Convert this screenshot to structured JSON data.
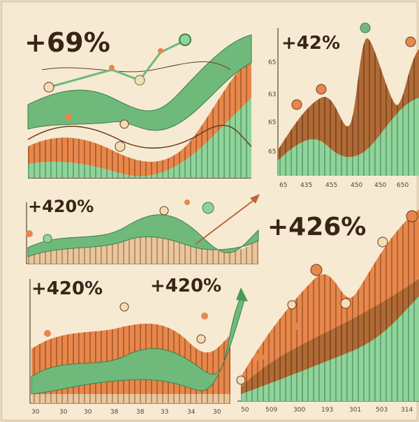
{
  "panels": [
    {
      "title": "+69%"
    },
    {
      "title": "+42%",
      "y_labels": [
        "65",
        "63",
        "65",
        "65"
      ],
      "x_labels": [
        "65",
        "435",
        "455",
        "450",
        "450",
        "650"
      ]
    },
    {
      "title": "+420%"
    },
    {
      "title": "+426%",
      "x_labels": [
        "50",
        "509",
        "300",
        "193",
        "301",
        "503",
        "314"
      ]
    },
    {
      "title": "+420%",
      "second_title": "+420%",
      "x_labels": [
        "30",
        "30",
        "30",
        "38",
        "38",
        "33",
        "34",
        "30"
      ]
    }
  ]
}
